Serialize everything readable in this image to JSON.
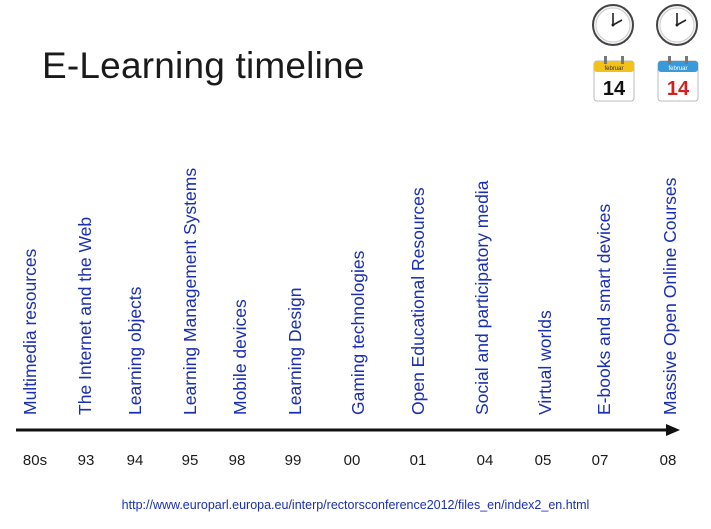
{
  "title": "E-Learning timeline",
  "timeline": {
    "items": [
      {
        "label": "Multimedia resources",
        "year": "80s"
      },
      {
        "label": "The Internet and the Web",
        "year": "93"
      },
      {
        "label": "Learning objects",
        "year": "94"
      },
      {
        "label": "Learning Management Systems",
        "year": "95"
      },
      {
        "label": "Mobile devices",
        "year": "98"
      },
      {
        "label": "Learning  Design",
        "year": "99"
      },
      {
        "label": "Gaming technologies",
        "year": "00"
      },
      {
        "label": "Open Educational Resources",
        "year": "01"
      },
      {
        "label": "Social and participatory media",
        "year": "04"
      },
      {
        "label": "Virtual worlds",
        "year": "05"
      },
      {
        "label": "E-books and smart devices",
        "year": "07"
      },
      {
        "label": "Massive Open Online Courses",
        "year": "08"
      }
    ]
  },
  "icons": {
    "calendar_month": "februar",
    "calendar_day": "14"
  },
  "source_url": "http://www.europarl.europa.eu/interp/rectorsconference2012/files_en/index2_en.html",
  "colors": {
    "label": "#1a2fb0",
    "text": "#1a1a1a",
    "calendar_day_red": "#d42020"
  }
}
